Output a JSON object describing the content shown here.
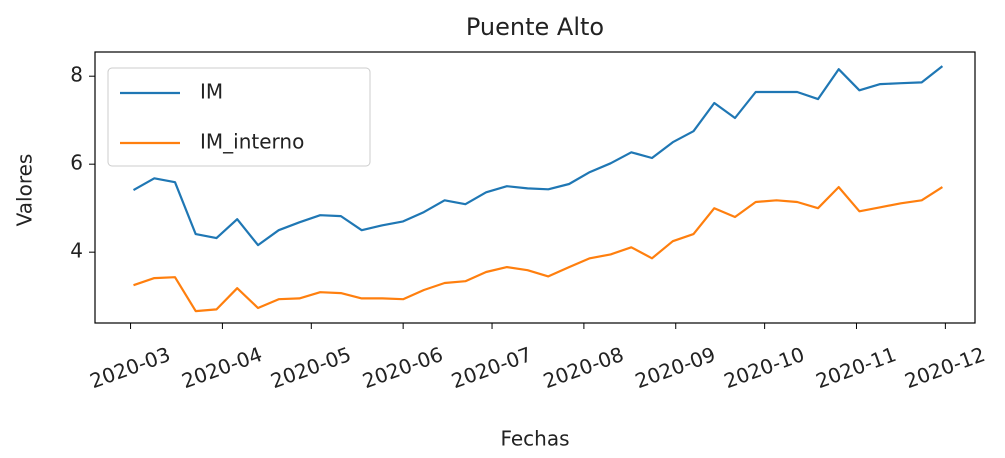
{
  "chart_data": {
    "type": "line",
    "title": "Puente Alto",
    "x_label": "Fechas",
    "y_label": "Valores",
    "x": [
      "2020-03-02",
      "2020-03-09",
      "2020-03-16",
      "2020-03-23",
      "2020-03-30",
      "2020-04-06",
      "2020-04-13",
      "2020-04-20",
      "2020-04-27",
      "2020-05-04",
      "2020-05-11",
      "2020-05-18",
      "2020-05-25",
      "2020-06-01",
      "2020-06-08",
      "2020-06-15",
      "2020-06-22",
      "2020-06-29",
      "2020-07-06",
      "2020-07-13",
      "2020-07-20",
      "2020-07-27",
      "2020-08-03",
      "2020-08-10",
      "2020-08-17",
      "2020-08-24",
      "2020-08-31",
      "2020-09-07",
      "2020-09-14",
      "2020-09-21",
      "2020-09-28",
      "2020-10-05",
      "2020-10-12",
      "2020-10-19",
      "2020-10-26",
      "2020-11-02",
      "2020-11-09",
      "2020-11-16",
      "2020-11-23",
      "2020-11-30"
    ],
    "series": [
      {
        "name": "IM",
        "color": "#1f77b4",
        "values": [
          5.41,
          5.68,
          5.59,
          4.41,
          4.32,
          4.75,
          4.16,
          4.5,
          4.68,
          4.84,
          4.82,
          4.5,
          4.61,
          4.7,
          4.91,
          5.18,
          5.09,
          5.36,
          5.5,
          5.45,
          5.43,
          5.55,
          5.82,
          6.02,
          6.27,
          6.14,
          6.5,
          6.75,
          7.39,
          7.05,
          7.64,
          7.64,
          7.64,
          7.48,
          8.16,
          7.68,
          7.82,
          7.84,
          7.86,
          8.23
        ]
      },
      {
        "name": "IM_interno",
        "color": "#ff7f0e",
        "values": [
          3.25,
          3.41,
          3.43,
          2.66,
          2.7,
          3.18,
          2.73,
          2.93,
          2.95,
          3.09,
          3.07,
          2.95,
          2.95,
          2.93,
          3.14,
          3.3,
          3.34,
          3.55,
          3.66,
          3.59,
          3.45,
          3.66,
          3.86,
          3.95,
          4.11,
          3.86,
          4.25,
          4.41,
          5.0,
          4.8,
          5.14,
          5.18,
          5.14,
          5.0,
          5.48,
          4.93,
          5.02,
          5.11,
          5.18,
          5.48
        ]
      }
    ],
    "xlim": [
      "2020-02-18",
      "2020-12-11"
    ],
    "xticks": [
      {
        "value": "2020-03-01",
        "label": "2020-03"
      },
      {
        "value": "2020-04-01",
        "label": "2020-04"
      },
      {
        "value": "2020-05-01",
        "label": "2020-05"
      },
      {
        "value": "2020-06-01",
        "label": "2020-06"
      },
      {
        "value": "2020-07-01",
        "label": "2020-07"
      },
      {
        "value": "2020-08-01",
        "label": "2020-08"
      },
      {
        "value": "2020-09-01",
        "label": "2020-09"
      },
      {
        "value": "2020-10-01",
        "label": "2020-10"
      },
      {
        "value": "2020-11-01",
        "label": "2020-11"
      },
      {
        "value": "2020-12-01",
        "label": "2020-12"
      }
    ],
    "ylim": [
      2.39,
      8.55
    ],
    "yticks": [
      4,
      6,
      8
    ],
    "grid": false,
    "legend": "upper-left"
  }
}
